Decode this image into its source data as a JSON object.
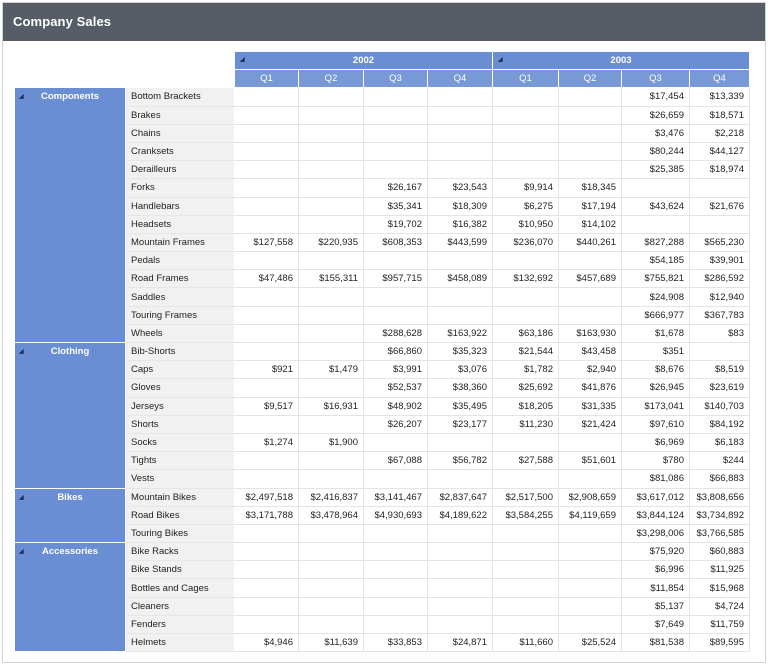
{
  "title": "Company Sales",
  "colors": {
    "titlebar": "#565d66",
    "header_blue": "#6a8ed3",
    "row_label_bg": "#f1f1f1"
  },
  "years": [
    "2002",
    "2003"
  ],
  "quarters": [
    "Q1",
    "Q2",
    "Q3",
    "Q4",
    "Q1",
    "Q2",
    "Q3",
    "Q4"
  ],
  "expand_icon": "collapse-triangle-icon",
  "categories": [
    {
      "name": "Components",
      "rows": [
        {
          "label": "Bottom Brackets",
          "values": [
            "",
            "",
            "",
            "",
            "",
            "",
            "$17,454",
            "$13,339"
          ]
        },
        {
          "label": "Brakes",
          "values": [
            "",
            "",
            "",
            "",
            "",
            "",
            "$26,659",
            "$18,571"
          ]
        },
        {
          "label": "Chains",
          "values": [
            "",
            "",
            "",
            "",
            "",
            "",
            "$3,476",
            "$2,218"
          ]
        },
        {
          "label": "Cranksets",
          "values": [
            "",
            "",
            "",
            "",
            "",
            "",
            "$80,244",
            "$44,127"
          ]
        },
        {
          "label": "Derailleurs",
          "values": [
            "",
            "",
            "",
            "",
            "",
            "",
            "$25,385",
            "$18,974"
          ]
        },
        {
          "label": "Forks",
          "values": [
            "",
            "",
            "$26,167",
            "$23,543",
            "$9,914",
            "$18,345",
            "",
            ""
          ]
        },
        {
          "label": "Handlebars",
          "values": [
            "",
            "",
            "$35,341",
            "$18,309",
            "$6,275",
            "$17,194",
            "$43,624",
            "$21,676"
          ]
        },
        {
          "label": "Headsets",
          "values": [
            "",
            "",
            "$19,702",
            "$16,382",
            "$10,950",
            "$14,102",
            "",
            ""
          ]
        },
        {
          "label": "Mountain Frames",
          "values": [
            "$127,558",
            "$220,935",
            "$608,353",
            "$443,599",
            "$236,070",
            "$440,261",
            "$827,288",
            "$565,230"
          ]
        },
        {
          "label": "Pedals",
          "values": [
            "",
            "",
            "",
            "",
            "",
            "",
            "$54,185",
            "$39,901"
          ]
        },
        {
          "label": "Road Frames",
          "values": [
            "$47,486",
            "$155,311",
            "$957,715",
            "$458,089",
            "$132,692",
            "$457,689",
            "$755,821",
            "$286,592"
          ]
        },
        {
          "label": "Saddles",
          "values": [
            "",
            "",
            "",
            "",
            "",
            "",
            "$24,908",
            "$12,940"
          ]
        },
        {
          "label": "Touring Frames",
          "values": [
            "",
            "",
            "",
            "",
            "",
            "",
            "$666,977",
            "$367,783"
          ]
        },
        {
          "label": "Wheels",
          "values": [
            "",
            "",
            "$288,628",
            "$163,922",
            "$63,186",
            "$163,930",
            "$1,678",
            "$83"
          ]
        }
      ]
    },
    {
      "name": "Clothing",
      "rows": [
        {
          "label": "Bib-Shorts",
          "values": [
            "",
            "",
            "$66,860",
            "$35,323",
            "$21,544",
            "$43,458",
            "$351",
            ""
          ]
        },
        {
          "label": "Caps",
          "values": [
            "$921",
            "$1,479",
            "$3,991",
            "$3,076",
            "$1,782",
            "$2,940",
            "$8,676",
            "$8,519"
          ]
        },
        {
          "label": "Gloves",
          "values": [
            "",
            "",
            "$52,537",
            "$38,360",
            "$25,692",
            "$41,876",
            "$26,945",
            "$23,619"
          ]
        },
        {
          "label": "Jerseys",
          "values": [
            "$9,517",
            "$16,931",
            "$48,902",
            "$35,495",
            "$18,205",
            "$31,335",
            "$173,041",
            "$140,703"
          ]
        },
        {
          "label": "Shorts",
          "values": [
            "",
            "",
            "$26,207",
            "$23,177",
            "$11,230",
            "$21,424",
            "$97,610",
            "$84,192"
          ]
        },
        {
          "label": "Socks",
          "values": [
            "$1,274",
            "$1,900",
            "",
            "",
            "",
            "",
            "$6,969",
            "$6,183"
          ]
        },
        {
          "label": "Tights",
          "values": [
            "",
            "",
            "$67,088",
            "$56,782",
            "$27,588",
            "$51,601",
            "$780",
            "$244"
          ]
        },
        {
          "label": "Vests",
          "values": [
            "",
            "",
            "",
            "",
            "",
            "",
            "$81,086",
            "$66,883"
          ]
        }
      ]
    },
    {
      "name": "Bikes",
      "rows": [
        {
          "label": "Mountain Bikes",
          "values": [
            "$2,497,518",
            "$2,416,837",
            "$3,141,467",
            "$2,837,647",
            "$2,517,500",
            "$2,908,659",
            "$3,617,012",
            "$3,808,656"
          ]
        },
        {
          "label": "Road Bikes",
          "values": [
            "$3,171,788",
            "$3,478,964",
            "$4,930,693",
            "$4,189,622",
            "$3,584,255",
            "$4,119,659",
            "$3,844,124",
            "$3,734,892"
          ]
        },
        {
          "label": "Touring Bikes",
          "values": [
            "",
            "",
            "",
            "",
            "",
            "",
            "$3,298,006",
            "$3,766,585"
          ]
        }
      ]
    },
    {
      "name": "Accessories",
      "rows": [
        {
          "label": "Bike Racks",
          "values": [
            "",
            "",
            "",
            "",
            "",
            "",
            "$75,920",
            "$60,883"
          ]
        },
        {
          "label": "Bike Stands",
          "values": [
            "",
            "",
            "",
            "",
            "",
            "",
            "$6,996",
            "$11,925"
          ]
        },
        {
          "label": "Bottles and Cages",
          "values": [
            "",
            "",
            "",
            "",
            "",
            "",
            "$11,854",
            "$15,968"
          ]
        },
        {
          "label": "Cleaners",
          "values": [
            "",
            "",
            "",
            "",
            "",
            "",
            "$5,137",
            "$4,724"
          ]
        },
        {
          "label": "Fenders",
          "values": [
            "",
            "",
            "",
            "",
            "",
            "",
            "$7,649",
            "$11,759"
          ]
        },
        {
          "label": "Helmets",
          "values": [
            "$4,946",
            "$11,639",
            "$33,853",
            "$24,871",
            "$11,660",
            "$25,524",
            "$81,538",
            "$89,595"
          ]
        }
      ]
    }
  ]
}
